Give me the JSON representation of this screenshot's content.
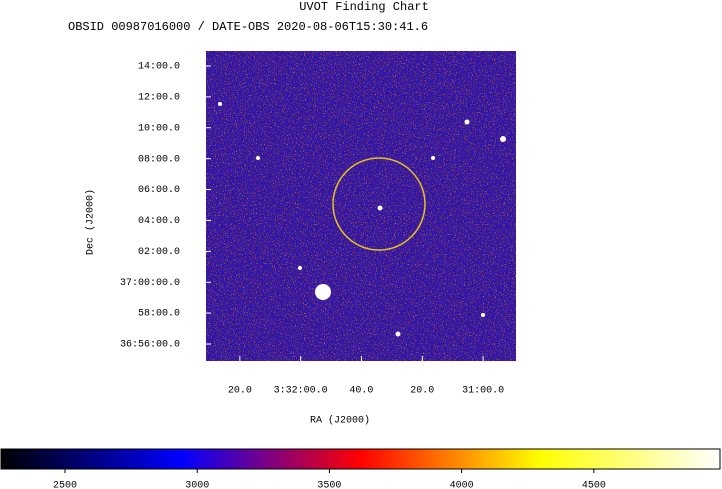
{
  "chart_data": {
    "type": "image",
    "title": "UVOT Finding Chart",
    "subtitle": "OBSID 00987016000 / DATE-OBS 2020-08-06T15:30:41.6",
    "x_label": "RA (J2000)",
    "y_label": "Dec (J2000)",
    "xlim": [
      53.1297,
      52.7049
    ],
    "xticks": [
      {
        "value": 53.0833,
        "label": "20.0"
      },
      {
        "value": 53.0,
        "label": "3:32:00.0"
      },
      {
        "value": 52.9167,
        "label": "40.0"
      },
      {
        "value": 52.8333,
        "label": "20.0"
      },
      {
        "value": 52.75,
        "label": "31:00.0"
      }
    ],
    "ylim": [
      36.915,
      37.2495
    ],
    "yticks": [
      {
        "value": 37.2333,
        "label": "14:00.0"
      },
      {
        "value": 37.2,
        "label": "12:00.0"
      },
      {
        "value": 37.1667,
        "label": "10:00.0"
      },
      {
        "value": 37.1333,
        "label": "08:00.0"
      },
      {
        "value": 37.1,
        "label": "06:00.0"
      },
      {
        "value": 37.0667,
        "label": "04:00.0"
      },
      {
        "value": 37.0333,
        "label": "02:00.0"
      },
      {
        "value": 37.0,
        "label": "37:00:00.0"
      },
      {
        "value": 36.9667,
        "label": "58:00.0"
      },
      {
        "value": 36.9333,
        "label": "36:56:00.0"
      }
    ],
    "colorbar": {
      "lim": [
        2258,
        4977
      ],
      "ticks": [
        2500,
        3000,
        3500,
        4000,
        4500
      ],
      "colors": [
        "#000000",
        "#0000ff",
        "#ff0000",
        "#ffff00",
        "#ffffff"
      ]
    }
  }
}
